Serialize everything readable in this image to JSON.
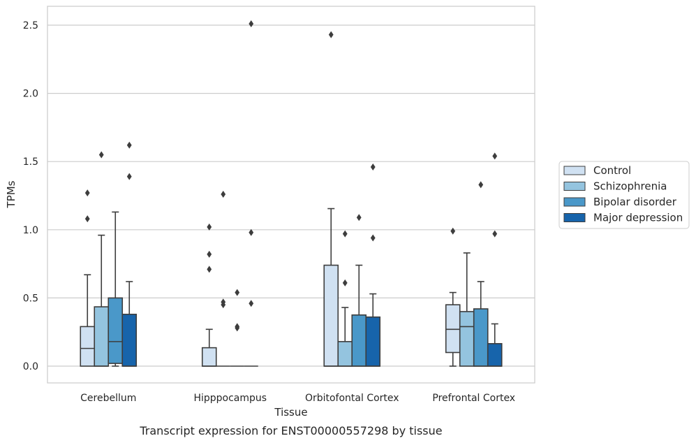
{
  "chart_data": {
    "type": "box",
    "title": "",
    "caption": "Transcript expression for ENST00000557298 by tissue",
    "xlabel": "Tissue",
    "ylabel": "TPMs",
    "ylim": [
      -0.12,
      2.65
    ],
    "yticks": [
      0.0,
      0.5,
      1.0,
      1.5,
      2.0,
      2.5
    ],
    "grid": "horizontal",
    "legend_position": "right",
    "categories": [
      "Cerebellum",
      "Hipppocampus",
      "Orbitofontal Cortex",
      "Prefrontal Cortex"
    ],
    "series": [
      {
        "name": "Control",
        "color": "#d0e1f2",
        "boxes": [
          {
            "whislo": 0.0,
            "q1": 0.0,
            "med": 0.13,
            "q3": 0.29,
            "whishi": 0.67,
            "fliers": [
              1.08,
              1.27
            ]
          },
          {
            "whislo": 0.0,
            "q1": 0.0,
            "med": 0.0,
            "q3": 0.135,
            "whishi": 0.27,
            "fliers": [
              0.71,
              0.82,
              1.02
            ]
          },
          {
            "whislo": 0.0,
            "q1": 0.0,
            "med": 0.0,
            "q3": 0.74,
            "whishi": 1.155,
            "fliers": [
              2.43
            ]
          },
          {
            "whislo": 0.0,
            "q1": 0.1,
            "med": 0.27,
            "q3": 0.45,
            "whishi": 0.54,
            "fliers": [
              0.99
            ]
          }
        ]
      },
      {
        "name": "Schizophrenia",
        "color": "#94c4df",
        "boxes": [
          {
            "whislo": 0.0,
            "q1": 0.0,
            "med": 0.0,
            "q3": 0.435,
            "whishi": 0.96,
            "fliers": [
              1.55
            ]
          },
          {
            "whislo": 0.0,
            "q1": 0.0,
            "med": 0.0,
            "q3": 0.0,
            "whishi": 0.0,
            "fliers": [
              0.45,
              0.47,
              1.26
            ]
          },
          {
            "whislo": 0.0,
            "q1": 0.0,
            "med": 0.0,
            "q3": 0.18,
            "whishi": 0.43,
            "fliers": [
              0.61,
              0.97
            ]
          },
          {
            "whislo": 0.0,
            "q1": 0.0,
            "med": 0.29,
            "q3": 0.4,
            "whishi": 0.83,
            "fliers": []
          }
        ]
      },
      {
        "name": "Bipolar disorder",
        "color": "#4a98c9",
        "boxes": [
          {
            "whislo": 0.0,
            "q1": 0.02,
            "med": 0.18,
            "q3": 0.5,
            "whishi": 1.13,
            "fliers": []
          },
          {
            "whislo": 0.0,
            "q1": 0.0,
            "med": 0.0,
            "q3": 0.0,
            "whishi": 0.0,
            "fliers": [
              0.28,
              0.29,
              0.54
            ]
          },
          {
            "whislo": 0.0,
            "q1": 0.0,
            "med": 0.0,
            "q3": 0.375,
            "whishi": 0.74,
            "fliers": [
              1.09
            ]
          },
          {
            "whislo": 0.0,
            "q1": 0.0,
            "med": 0.0,
            "q3": 0.42,
            "whishi": 0.62,
            "fliers": [
              1.33
            ]
          }
        ]
      },
      {
        "name": "Major depression",
        "color": "#1764ab",
        "boxes": [
          {
            "whislo": 0.0,
            "q1": 0.0,
            "med": 0.0,
            "q3": 0.38,
            "whishi": 0.62,
            "fliers": [
              1.39,
              1.62
            ]
          },
          {
            "whislo": 0.0,
            "q1": 0.0,
            "med": 0.0,
            "q3": 0.0,
            "whishi": 0.0,
            "fliers": [
              0.46,
              0.98,
              2.51
            ]
          },
          {
            "whislo": 0.0,
            "q1": 0.0,
            "med": 0.0,
            "q3": 0.36,
            "whishi": 0.53,
            "fliers": [
              0.94,
              1.46
            ]
          },
          {
            "whislo": 0.0,
            "q1": 0.0,
            "med": 0.0,
            "q3": 0.165,
            "whishi": 0.31,
            "fliers": [
              0.97,
              1.54
            ]
          }
        ]
      }
    ]
  }
}
